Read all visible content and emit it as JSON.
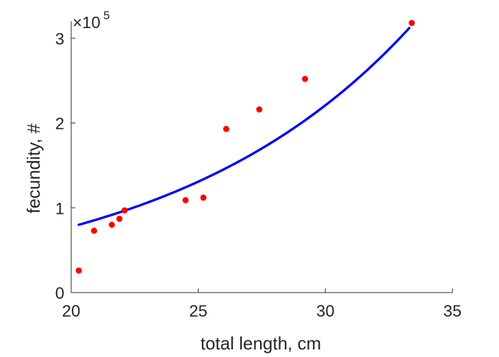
{
  "chart_data": {
    "type": "scatter",
    "title": "",
    "xlabel": "total length, cm",
    "ylabel": "fecundity, #",
    "xlim": [
      20,
      35
    ],
    "ylim": [
      0,
      320000
    ],
    "xticks": [
      20,
      25,
      30,
      35
    ],
    "yticks": [
      0,
      1,
      2,
      3
    ],
    "y_multiplier_base": "×10",
    "y_multiplier_exponent": "5",
    "grid": false,
    "legend": "none",
    "series": [
      {
        "kind": "points",
        "color": "#ff0000",
        "x": [
          20.3,
          20.9,
          21.6,
          21.9,
          22.1,
          24.5,
          25.2,
          26.1,
          27.4,
          29.2,
          33.4
        ],
        "y": [
          26000,
          73000,
          80000,
          87000,
          97000,
          109000,
          112000,
          193000,
          216000,
          252000,
          318000
        ]
      },
      {
        "kind": "fit-curve",
        "color": "#0000ff",
        "model": "exponential",
        "x_range": [
          20.3,
          33.3
        ],
        "y_at_start": 80000,
        "y_at_end": 312000
      }
    ]
  }
}
